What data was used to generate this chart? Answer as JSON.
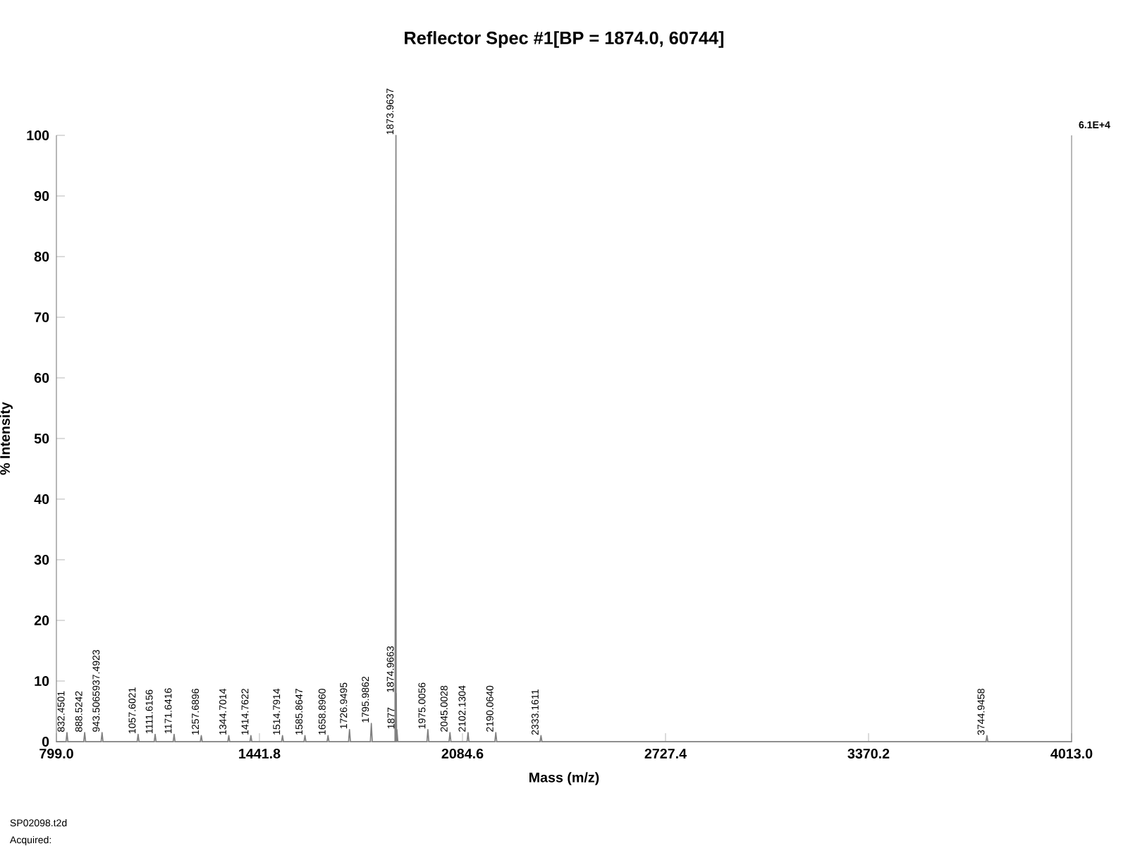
{
  "chart_data": {
    "type": "line",
    "title": "Reflector Spec #1[BP = 1874.0, 60744]",
    "xlabel": "Mass (m/z)",
    "ylabel": "% Intensity",
    "x": [
      799.0,
      829.45,
      832.4501,
      835.45,
      885.52,
      888.5242,
      891.52,
      940.51,
      943.5065,
      946.51,
      1054.6,
      1057.6021,
      1060.6,
      1108.6,
      1111.6156,
      1114.6,
      1168.6,
      1171.6416,
      1174.6,
      1254.7,
      1257.6896,
      1260.7,
      1341.7,
      1344.7014,
      1347.7,
      1411.8,
      1414.7622,
      1417.8,
      1511.8,
      1514.7914,
      1517.8,
      1582.9,
      1585.8647,
      1588.9,
      1655.9,
      1658.896,
      1661.9,
      1723.9,
      1726.9495,
      1729.9,
      1793,
      1795.9862,
      1799,
      1871,
      1873.9637,
      1874.5,
      1874.9663,
      1876,
      1877,
      1880,
      1972,
      1975.0056,
      1978,
      2042,
      2045.0028,
      2048,
      2099.1,
      2102.1304,
      2105.1,
      2187.1,
      2190.064,
      2193.1,
      2330.2,
      2333.1611,
      2336.2,
      3741.9,
      3744.9458,
      3747.9,
      4013.0
    ],
    "values": [
      0,
      0,
      1.5,
      0,
      0,
      1.5,
      0,
      0,
      1.5,
      0,
      0,
      1.2,
      0,
      0,
      1.2,
      0,
      0,
      1.2,
      0,
      0,
      1,
      0,
      0,
      1,
      0,
      0,
      1,
      0,
      0,
      1,
      0,
      0,
      1,
      0,
      0,
      1,
      0,
      0,
      2,
      0,
      0,
      3,
      0,
      0,
      100,
      0,
      8,
      0,
      2,
      0,
      0,
      2,
      0,
      0,
      1.5,
      0,
      0,
      1.5,
      0,
      0,
      1.5,
      0,
      0,
      1,
      0,
      0,
      1,
      0,
      0
    ],
    "color": "#808080",
    "xlim": [
      799.0,
      4013.0
    ],
    "xticks": [
      {
        "value": 799.0,
        "label": "799.0"
      },
      {
        "value": 1441.8,
        "label": "1441.8"
      },
      {
        "value": 2084.6,
        "label": "2084.6"
      },
      {
        "value": 2727.4,
        "label": "2727.4"
      },
      {
        "value": 3370.2,
        "label": "3370.2"
      },
      {
        "value": 4013.0,
        "label": "4013.0"
      }
    ],
    "ylim": [
      0,
      100
    ],
    "yticks": [
      0,
      10,
      20,
      30,
      40,
      50,
      60,
      70,
      80,
      90,
      100
    ],
    "annotations": [
      {
        "text": "832.4501",
        "x": 832.4501,
        "y": 1.5
      },
      {
        "text": "888.5242",
        "x": 888.5242,
        "y": 1.5
      },
      {
        "text": "943.5065937.4923",
        "x": 943.5065,
        "y": 1.5
      },
      {
        "text": "1057.6021",
        "x": 1057.6021,
        "y": 1.2
      },
      {
        "text": "1111.6156",
        "x": 1111.6156,
        "y": 1.2
      },
      {
        "text": "1171.6416",
        "x": 1171.6416,
        "y": 1.2
      },
      {
        "text": "1257.6896",
        "x": 1257.6896,
        "y": 1
      },
      {
        "text": "1344.7014",
        "x": 1344.7014,
        "y": 1
      },
      {
        "text": "1414.7622",
        "x": 1414.7622,
        "y": 1
      },
      {
        "text": "1514.7914",
        "x": 1514.7914,
        "y": 1
      },
      {
        "text": "1585.8647",
        "x": 1585.8647,
        "y": 1
      },
      {
        "text": "1658.8960",
        "x": 1658.896,
        "y": 1
      },
      {
        "text": "1726.9495",
        "x": 1726.9495,
        "y": 2
      },
      {
        "text": "1795.9862",
        "x": 1795.9862,
        "y": 3
      },
      {
        "text": "1873.9637",
        "x": 1873.9637,
        "y": 100
      },
      {
        "text": "1874.9663",
        "x": 1874.9663,
        "y": 8
      },
      {
        "text": "1877",
        "x": 1877,
        "y": 2
      },
      {
        "text": "1975.0056",
        "x": 1975.0056,
        "y": 2
      },
      {
        "text": "2045.0028",
        "x": 2045.0028,
        "y": 1.5
      },
      {
        "text": "2102.1304",
        "x": 2102.1304,
        "y": 1.5
      },
      {
        "text": "2190.0640",
        "x": 2190.064,
        "y": 1.5
      },
      {
        "text": "2333.1611",
        "x": 2333.1611,
        "y": 1
      },
      {
        "text": "3744.9458",
        "x": 3744.9458,
        "y": 1
      },
      "6.1E+4",
      "SP02098.t2d",
      "Acquired:"
    ]
  }
}
